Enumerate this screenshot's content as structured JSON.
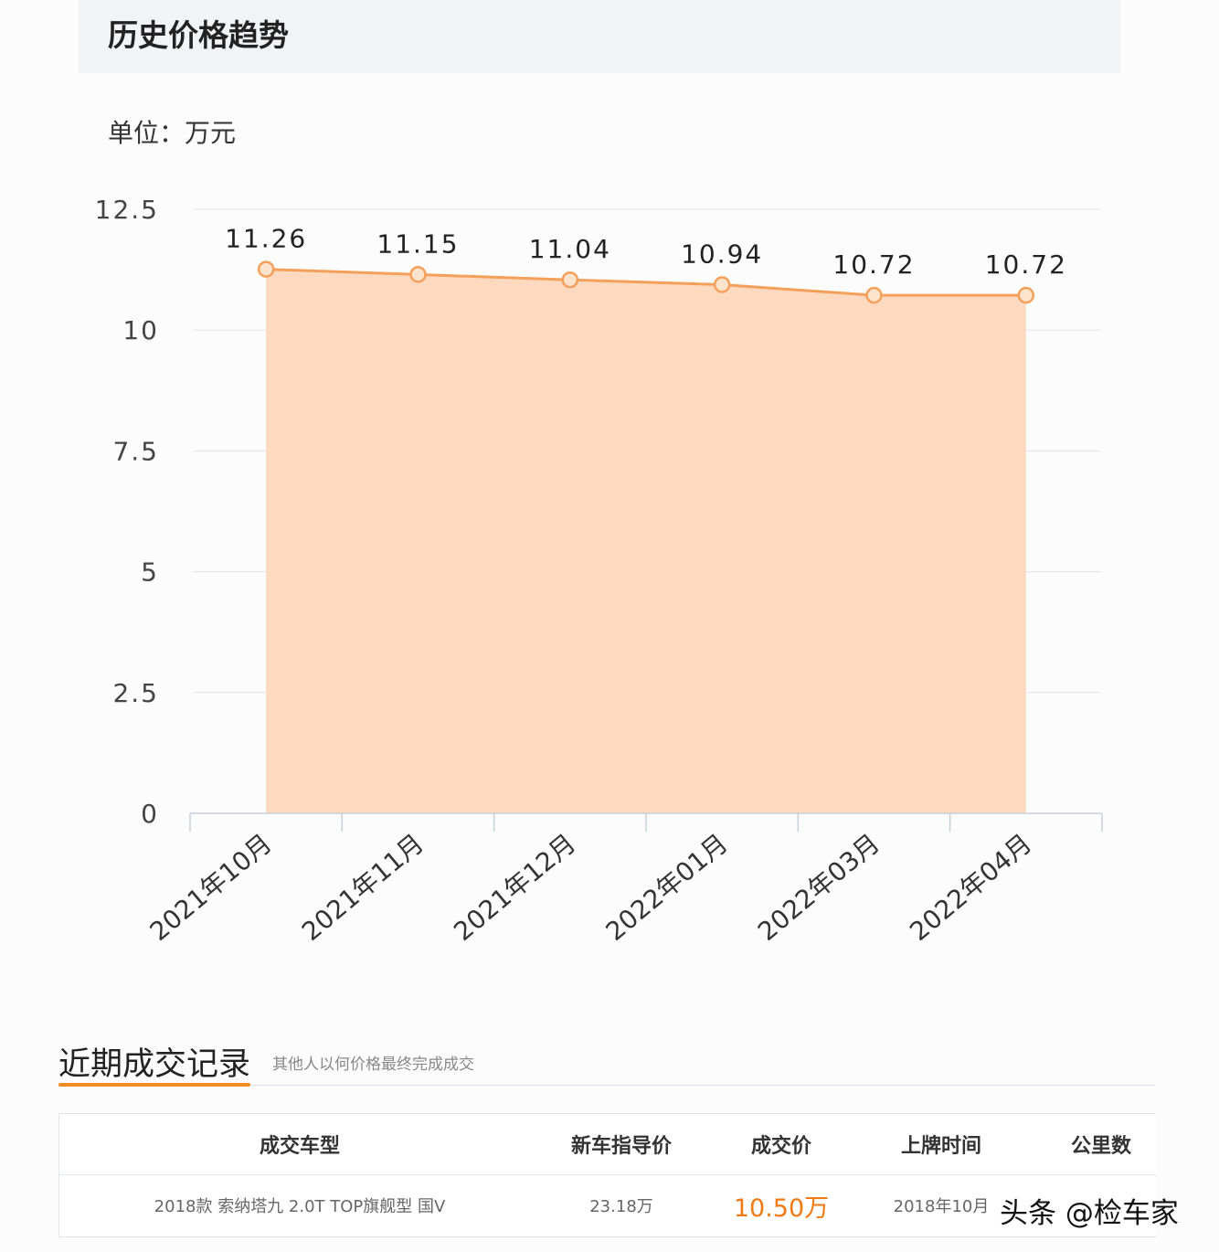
{
  "header": {
    "title": "历史价格趋势"
  },
  "unit_label": "单位：万元",
  "chart_data": {
    "type": "area",
    "categories": [
      "2021年10月",
      "2021年11月",
      "2021年12月",
      "2022年01月",
      "2022年03月",
      "2022年04月"
    ],
    "values": [
      11.26,
      11.15,
      11.04,
      10.94,
      10.72,
      10.72
    ],
    "data_labels": [
      "11.26",
      "11.15",
      "11.04",
      "10.94",
      "10.72",
      "10.72"
    ],
    "yticks": [
      "0",
      "2.5",
      "5",
      "7.5",
      "10",
      "12.5"
    ],
    "ylim": [
      0,
      12.5
    ],
    "grid": true,
    "colors": {
      "line": "#f5a05a",
      "fill": "#fdd9bf",
      "marker_fill": "#fde3cc"
    }
  },
  "records": {
    "title": "近期成交记录",
    "subtitle": "其他人以何价格最终完成成交",
    "columns": [
      "成交车型",
      "新车指导价",
      "成交价",
      "上牌时间",
      "公里数"
    ],
    "rows": [
      {
        "model": "2018款 索纳塔九 2.0T TOP旗舰型 国V",
        "msrp": "23.18万",
        "price": "10.50万",
        "reg": "2018年10月"
      }
    ]
  },
  "watermark": "头条 @检车家"
}
